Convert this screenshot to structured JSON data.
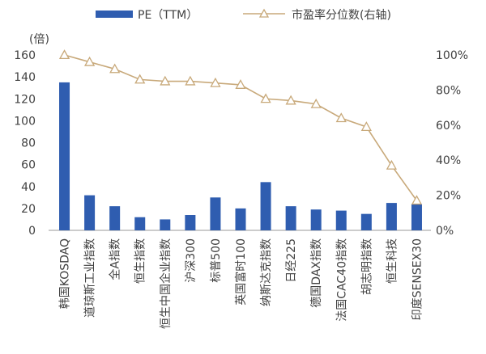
{
  "chart_data": {
    "type": "bar",
    "left_unit_label": "(倍)",
    "categories": [
      "韩国KOSDAQ",
      "道琼斯工业指数",
      "全A指数",
      "恒生指数",
      "恒生中国企业指数",
      "沪深300",
      "标普500",
      "英国富时100",
      "纳斯达克指数",
      "日经225",
      "德国DAX指数",
      "法国CAC40指数",
      "胡志明指数",
      "恒生科技",
      "印度SENSEX30"
    ],
    "series": [
      {
        "name": "PE（TTM）",
        "type": "bar",
        "axis": "left",
        "color": "#2f5db0",
        "values": [
          135,
          32,
          22,
          12,
          10,
          14,
          30,
          20,
          44,
          22,
          19,
          18,
          15,
          25,
          24
        ]
      },
      {
        "name": "市盈率分位数(右轴)",
        "type": "line",
        "axis": "right",
        "color": "#c8a97a",
        "marker": "triangle-open",
        "values": [
          100,
          96,
          92,
          86,
          85,
          85,
          84,
          83,
          75,
          74,
          72,
          64,
          59,
          37,
          17
        ]
      }
    ],
    "y_left": {
      "min": 0,
      "max": 160,
      "ticks": [
        0,
        20,
        40,
        60,
        80,
        100,
        120,
        140,
        160
      ]
    },
    "y_right": {
      "min": 0,
      "max": 100,
      "ticks": [
        "0%",
        "20%",
        "40%",
        "60%",
        "80%",
        "100%"
      ]
    },
    "legend_position": "top",
    "grid": false
  }
}
